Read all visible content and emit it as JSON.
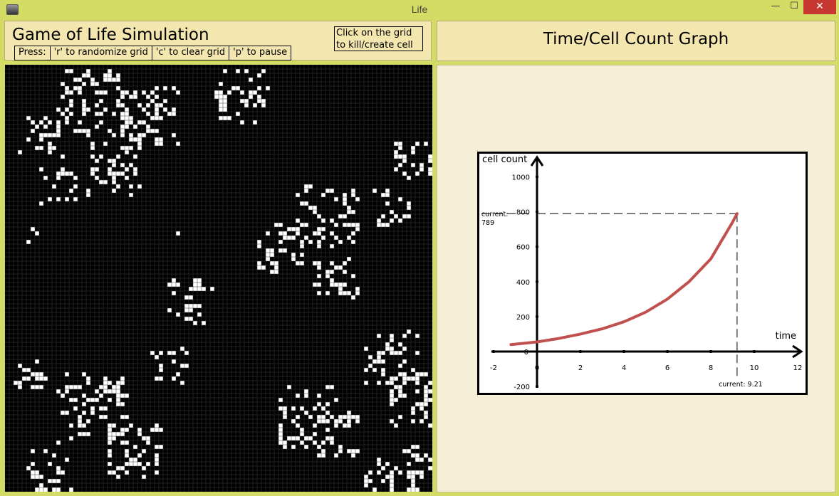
{
  "window": {
    "title": "Life",
    "minimize_label": "—",
    "maximize_label": "☐",
    "close_label": "✕"
  },
  "left_panel": {
    "title": "Game of Life Simulation",
    "keys": [
      "Press:",
      "'r' to randomize grid",
      "'c' to clear grid",
      "'p' to pause"
    ],
    "click_hint": "Click on the grid to kill/create cell"
  },
  "grid": {
    "columns": 100,
    "rows": 100
  },
  "right_panel": {
    "title": "Time/Cell Count Graph"
  },
  "chart_data": {
    "type": "line",
    "xlabel": "time",
    "ylabel": "cell count",
    "xlim": [
      -2,
      12
    ],
    "ylim": [
      -200,
      1000
    ],
    "x_ticks": [
      -2,
      0,
      2,
      4,
      6,
      8,
      10,
      12
    ],
    "y_ticks": [
      -200,
      0,
      200,
      400,
      600,
      800,
      1000
    ],
    "current_x": 9.21,
    "current_y": 789,
    "current_x_label": "current: 9.21",
    "current_y_label_1": "current:",
    "current_y_label_2": "789",
    "series": [
      {
        "color": "#c0504d",
        "x": [
          -1.2,
          0,
          1,
          2,
          3,
          4,
          5,
          6,
          7,
          8,
          9,
          9.21
        ],
        "y": [
          40,
          55,
          75,
          100,
          130,
          170,
          225,
          300,
          400,
          530,
          740,
          789
        ]
      }
    ]
  }
}
